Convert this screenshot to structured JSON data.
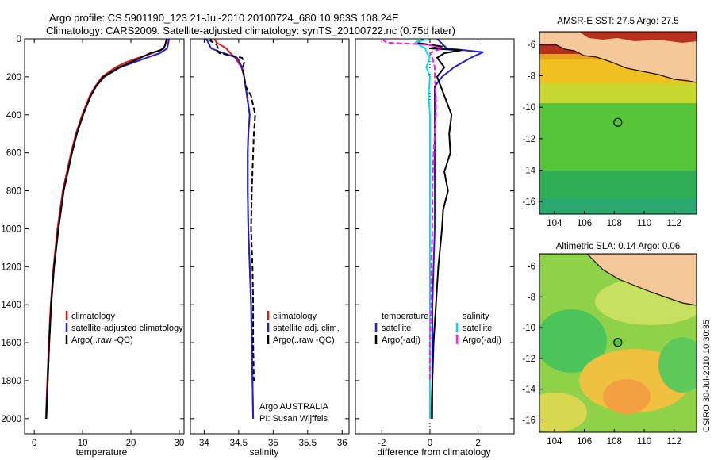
{
  "figure": {
    "title_line1": "Argo profile: CS 5901190_123 21-Jul-2010 20100724_680 10.963S 108.24E",
    "title_line2": "Climatology: CARS2009. Satellite-adjusted climatology: synTS_20100722.nc (0.75d later)",
    "credit": "CSIRO 30-Jul-2010 10:30:35",
    "argo_note_line1": "Argo AUSTRALIA",
    "argo_note_line2": "PI: Susan Wijffels"
  },
  "colors": {
    "climatology": "#e01a1a",
    "satellite": "#1f1fd8",
    "argo": "#000000",
    "salinity_satellite": "#00e0e8",
    "salinity_argo": "#ff1aff",
    "land": "#f5c89a",
    "coast": "#111111"
  },
  "chart_data": [
    {
      "type": "line",
      "id": "temperature",
      "xlabel": "temperature",
      "ylabel": "",
      "xlim": [
        -2,
        31
      ],
      "ylim": [
        2080,
        0
      ],
      "xticks": [
        0,
        10,
        20,
        30
      ],
      "yticks": [
        0,
        200,
        400,
        600,
        800,
        1000,
        1200,
        1400,
        1600,
        1800,
        2000
      ],
      "legend": [
        "climatology",
        "satellite-adjusted climatology",
        "Argo(..raw -QC)"
      ],
      "series": [
        {
          "name": "climatology",
          "color_key": "climatology",
          "dash": false,
          "depth": [
            0,
            50,
            75,
            100,
            125,
            150,
            200,
            250,
            300,
            400,
            500,
            600,
            800,
            1000,
            1200,
            1400,
            1600,
            1800,
            2000
          ],
          "values": [
            27.6,
            26.8,
            24.5,
            21.5,
            18.8,
            16.8,
            14.0,
            12.6,
            11.5,
            9.9,
            8.6,
            7.6,
            5.9,
            4.8,
            4.0,
            3.4,
            3.0,
            2.7,
            2.4
          ]
        },
        {
          "name": "satellite-adjusted climatology",
          "color_key": "satellite",
          "dash": false,
          "depth": [
            0,
            50,
            75,
            100,
            125,
            150,
            200,
            250,
            300,
            400,
            500,
            600,
            800,
            1000,
            1200,
            1400,
            1600,
            1800,
            2000
          ],
          "values": [
            27.9,
            27.5,
            26.0,
            23.2,
            20.5,
            17.8,
            14.5,
            12.8,
            11.7,
            10.1,
            8.8,
            7.8,
            6.1,
            5.0,
            4.1,
            3.5,
            3.1,
            2.8,
            2.5
          ]
        },
        {
          "name": "Argo(..raw -QC)",
          "color_key": "argo",
          "dash": false,
          "depth": [
            0,
            20,
            40,
            60,
            75,
            100,
            125,
            150,
            200,
            250,
            300,
            400,
            500,
            600,
            800,
            1000,
            1200,
            1400,
            1600,
            1800,
            2000
          ],
          "values": [
            27.4,
            27.2,
            27.0,
            26.2,
            24.0,
            22.0,
            19.8,
            17.5,
            14.3,
            12.8,
            11.7,
            10.1,
            8.8,
            7.8,
            6.1,
            5.0,
            4.1,
            3.5,
            3.1,
            2.8,
            2.5
          ]
        }
      ]
    },
    {
      "type": "line",
      "id": "salinity",
      "xlabel": "salinity",
      "xlim": [
        33.8,
        36.1
      ],
      "ylim": [
        2080,
        0
      ],
      "xticks": [
        34,
        34.5,
        35,
        35.5,
        36
      ],
      "legend": [
        "climatology",
        "satellite adj. clim.",
        "Argo(..raw -QC)"
      ],
      "series": [
        {
          "name": "climatology",
          "color_key": "climatology",
          "dash": false,
          "depth": [
            0,
            20,
            50,
            75,
            100,
            150,
            200,
            300,
            400,
            500,
            600,
            800,
            1000,
            1200,
            1400,
            1600,
            1800,
            2000
          ],
          "values": [
            34.15,
            34.18,
            34.32,
            34.38,
            34.45,
            34.54,
            34.58,
            34.62,
            34.66,
            34.64,
            34.63,
            34.63,
            34.64,
            34.66,
            34.68,
            34.69,
            34.7,
            34.71
          ]
        },
        {
          "name": "satellite adj. clim.",
          "color_key": "satellite",
          "dash": false,
          "depth": [
            0,
            20,
            50,
            75,
            100,
            150,
            200,
            300,
            400,
            500,
            600,
            800,
            1000,
            1200,
            1400,
            1600,
            1800,
            2000
          ],
          "values": [
            34.03,
            34.06,
            34.1,
            34.28,
            34.48,
            34.55,
            34.58,
            34.62,
            34.66,
            34.64,
            34.63,
            34.63,
            34.64,
            34.66,
            34.68,
            34.69,
            34.7,
            34.71
          ]
        },
        {
          "name": "Argo(..raw -QC)",
          "color_key": "argo",
          "dash": true,
          "depth": [
            0,
            10,
            30,
            50,
            60,
            75,
            100,
            125,
            150,
            200,
            250,
            300,
            400,
            500,
            600,
            800,
            1000,
            1200,
            1400,
            1600,
            1800
          ],
          "values": [
            34.1,
            34.09,
            34.18,
            34.2,
            34.18,
            34.22,
            34.55,
            34.58,
            34.56,
            34.58,
            34.6,
            34.68,
            34.74,
            34.72,
            34.71,
            34.69,
            34.68,
            34.7,
            34.71,
            34.71,
            34.72
          ]
        }
      ]
    },
    {
      "type": "line",
      "id": "difference",
      "xlabel": "difference from climatology",
      "xlim": [
        -3.1,
        3.5
      ],
      "ylim": [
        2080,
        0
      ],
      "xticks": [
        -2,
        0,
        2
      ],
      "legend_temperature": [
        "temperature",
        "satellite",
        "Argo(-adj)"
      ],
      "legend_salinity": [
        "salinity",
        "satellite",
        "Argo(-adj)"
      ],
      "series": [
        {
          "name": "temperature satellite",
          "color_key": "satellite",
          "dash": false,
          "depth": [
            0,
            50,
            70,
            100,
            150,
            200,
            250,
            300,
            400,
            500,
            600,
            800,
            1000,
            1200,
            1400,
            1600,
            1800,
            2000
          ],
          "values": [
            0.3,
            0.7,
            2.2,
            1.7,
            1.0,
            0.5,
            0.2,
            0.2,
            0.2,
            0.2,
            0.2,
            0.2,
            0.2,
            0.15,
            0.1,
            0.1,
            0.1,
            0.1
          ]
        },
        {
          "name": "temperature Argo(-adj)",
          "color_key": "argo",
          "dash": false,
          "depth": [
            0,
            20,
            40,
            50,
            60,
            75,
            100,
            150,
            200,
            300,
            400,
            500,
            600,
            700,
            800,
            900,
            1000,
            1200,
            1400,
            1600,
            1800,
            2000
          ],
          "values": [
            -0.2,
            -0.6,
            0.5,
            0.0,
            1.3,
            0.6,
            0.3,
            0.6,
            0.3,
            0.6,
            0.9,
            0.8,
            0.85,
            0.6,
            0.75,
            0.55,
            0.5,
            0.35,
            0.25,
            0.15,
            0.1,
            0.05
          ]
        },
        {
          "name": "salinity satellite",
          "color_key": "salinity_satellite",
          "dash": false,
          "depth": [
            0,
            20,
            50,
            80,
            100,
            150,
            200,
            300,
            400,
            600,
            800,
            1000,
            1400,
            1800,
            2000
          ],
          "values": [
            -0.1,
            -0.6,
            -0.2,
            -0.1,
            0.0,
            -0.15,
            0.0,
            -0.05,
            0.0,
            0.0,
            0.0,
            0.0,
            0.0,
            0.0,
            0.0
          ]
        },
        {
          "name": "salinity Argo(-adj)",
          "color_key": "salinity_argo",
          "dash": true,
          "depth": [
            0,
            20,
            30,
            50,
            75,
            100,
            150,
            200,
            300,
            400,
            500,
            600,
            800,
            1000,
            1200,
            1400,
            1600,
            1800
          ],
          "values": [
            -2.0,
            -1.8,
            -0.1,
            0.5,
            0.0,
            0.1,
            0.2,
            0.2,
            0.25,
            0.25,
            0.2,
            0.15,
            0.1,
            0.1,
            0.05,
            0.05,
            0.0,
            0.0
          ]
        }
      ]
    },
    {
      "type": "heatmap",
      "id": "sst_map",
      "title": "AMSR-E SST: 27.5 Argo: 27.5",
      "xlim": [
        103,
        113.5
      ],
      "ylim": [
        -16.8,
        -5.2
      ],
      "xticks": [
        104,
        106,
        108,
        110,
        112
      ],
      "yticks": [
        -6,
        -8,
        -10,
        -12,
        -14,
        -16
      ],
      "argo_position": [
        108.24,
        -10.963
      ]
    },
    {
      "type": "heatmap",
      "id": "sla_map",
      "title": "Altimetric SLA: 0.14 Argo: 0.06",
      "xlim": [
        103,
        113.5
      ],
      "ylim": [
        -16.8,
        -5.2
      ],
      "xticks": [
        104,
        106,
        108,
        110,
        112
      ],
      "yticks": [
        -6,
        -8,
        -10,
        -12,
        -14,
        -16
      ],
      "argo_position": [
        108.24,
        -10.963
      ]
    }
  ]
}
